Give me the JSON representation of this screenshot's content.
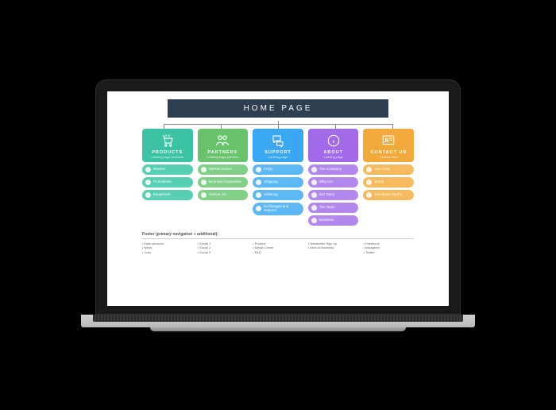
{
  "sitemap": {
    "type": "tree",
    "title": "HOME PAGE",
    "title_bg": "#2d3e50",
    "title_color": "#ffffff",
    "background_color": "#ffffff",
    "connector_color": "#888888",
    "columns": [
      {
        "label": "PRODUCTS",
        "sub": "Landing page products",
        "color": "#3bc3a3",
        "item_color": "#58cfb2",
        "icon": "cart",
        "items": [
          "Newest",
          "Promotions",
          "Equipment"
        ]
      },
      {
        "label": "PARTNERS",
        "sub": "Landing page partners",
        "color": "#69c36d",
        "item_color": "#82cf88",
        "icon": "people",
        "items": [
          "NetPart GmbH",
          "Mountain Equipment",
          "Vertical AG"
        ]
      },
      {
        "label": "SUPPORT",
        "sub": "Landing page",
        "color": "#3aa7f2",
        "item_color": "#5cb8f5",
        "icon": "chat",
        "items": [
          "FAQs",
          "Shipping",
          "Ordering",
          "Exchanges and Returns"
        ]
      },
      {
        "label": "ABOUT",
        "sub": "Landing page",
        "color": "#a06ae8",
        "item_color": "#b388ee",
        "icon": "info",
        "items": [
          "The Company",
          "Why us?",
          "Our Story",
          "The Team",
          "Business"
        ]
      },
      {
        "label": "CONTACT US",
        "sub": "Contact form",
        "color": "#f2a93c",
        "item_color": "#f5b95e",
        "icon": "contact",
        "items": [
          "Live Chat",
          "Email",
          "Feedback imprint"
        ]
      }
    ],
    "footer": {
      "title": "Footer (primary navigation + additional):",
      "columns": [
        [
          "Main sections",
          "News",
          "Jobs"
        ],
        [
          "Social 1",
          "Social 2",
          "Social 3"
        ],
        [
          "Product",
          "Media Center",
          "FAQ"
        ],
        [
          "Newsletter Sign up",
          "Area of Business"
        ],
        [
          "Facebook",
          "Instagram",
          "Twitter"
        ]
      ]
    }
  }
}
